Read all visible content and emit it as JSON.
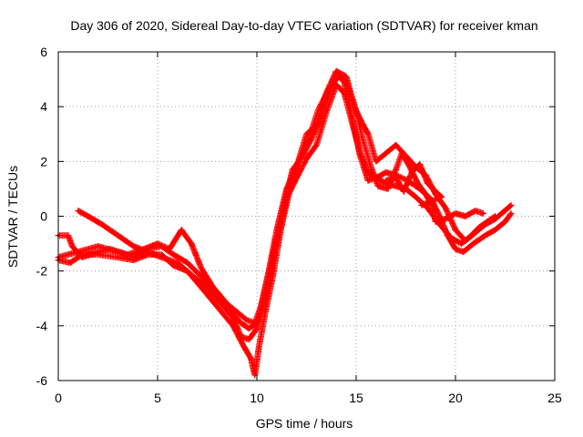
{
  "chart_data": {
    "type": "scatter",
    "title": "Day 306 of 2020, Sidereal Day-to-day VTEC variation (SDTVAR) for receiver kman",
    "xlabel": "GPS time / hours",
    "ylabel": "SDTVAR / TECUs",
    "xlim": [
      0,
      25
    ],
    "ylim": [
      -6,
      6
    ],
    "xticks": [
      0,
      5,
      10,
      15,
      20,
      25
    ],
    "yticks": [
      -6,
      -4,
      -2,
      0,
      2,
      4,
      6
    ],
    "xtick_labels": [
      "0",
      "5",
      "10",
      "15",
      "20",
      "25"
    ],
    "ytick_labels": [
      "-6",
      "-4",
      "-2",
      "0",
      "2",
      "4",
      "6"
    ],
    "grid": true,
    "marker": "+",
    "color": "#ff0000",
    "series": [
      {
        "name": "trace-1",
        "points": [
          [
            0.0,
            -1.5
          ],
          [
            1.0,
            -1.3
          ],
          [
            2.0,
            -1.1
          ],
          [
            3.0,
            -1.3
          ],
          [
            3.8,
            -1.5
          ],
          [
            4.5,
            -1.2
          ],
          [
            5.2,
            -1.1
          ],
          [
            5.8,
            -1.4
          ],
          [
            6.5,
            -1.7
          ],
          [
            7.2,
            -2.2
          ],
          [
            8.0,
            -2.8
          ],
          [
            8.7,
            -3.5
          ],
          [
            9.2,
            -3.9
          ],
          [
            9.6,
            -4.1
          ],
          [
            10.0,
            -3.9
          ],
          [
            10.3,
            -3.0
          ],
          [
            10.7,
            -1.8
          ],
          [
            11.0,
            -0.8
          ],
          [
            11.4,
            0.5
          ],
          [
            11.8,
            1.7
          ],
          [
            12.3,
            2.2
          ],
          [
            12.8,
            2.9
          ],
          [
            13.3,
            3.7
          ],
          [
            13.7,
            4.6
          ],
          [
            14.0,
            5.2
          ],
          [
            14.4,
            4.9
          ],
          [
            14.8,
            3.6
          ],
          [
            15.2,
            2.2
          ],
          [
            15.6,
            1.3
          ],
          [
            16.0,
            1.4
          ],
          [
            16.5,
            1.6
          ],
          [
            17.0,
            1.5
          ],
          [
            17.6,
            1.3
          ],
          [
            18.2,
            1.0
          ],
          [
            18.8,
            0.6
          ],
          [
            19.2,
            0.0
          ],
          [
            19.6,
            -0.7
          ],
          [
            20.0,
            -1.2
          ],
          [
            20.4,
            -1.3
          ],
          [
            20.9,
            -1.0
          ],
          [
            21.5,
            -0.7
          ],
          [
            22.0,
            -0.5
          ],
          [
            22.5,
            -0.2
          ],
          [
            22.8,
            0.1
          ]
        ]
      },
      {
        "name": "trace-2",
        "points": [
          [
            0.0,
            -1.6
          ],
          [
            0.6,
            -1.7
          ],
          [
            1.2,
            -1.4
          ],
          [
            2.0,
            -1.4
          ],
          [
            3.0,
            -1.5
          ],
          [
            3.8,
            -1.6
          ],
          [
            4.5,
            -1.4
          ],
          [
            5.2,
            -1.4
          ],
          [
            5.8,
            -1.8
          ],
          [
            6.5,
            -2.0
          ],
          [
            7.2,
            -2.6
          ],
          [
            8.0,
            -3.3
          ],
          [
            8.8,
            -4.0
          ],
          [
            9.3,
            -4.7
          ],
          [
            9.7,
            -5.2
          ],
          [
            9.9,
            -5.8
          ],
          [
            10.1,
            -4.8
          ],
          [
            10.4,
            -3.6
          ],
          [
            10.8,
            -2.2
          ],
          [
            11.2,
            -0.5
          ],
          [
            11.6,
            0.8
          ],
          [
            12.0,
            1.4
          ],
          [
            12.5,
            2.1
          ],
          [
            13.0,
            2.6
          ],
          [
            13.5,
            3.8
          ],
          [
            14.0,
            4.8
          ],
          [
            14.4,
            4.5
          ],
          [
            14.8,
            3.4
          ],
          [
            15.2,
            2.3
          ],
          [
            15.6,
            1.6
          ],
          [
            16.0,
            1.4
          ],
          [
            16.5,
            1.2
          ],
          [
            17.0,
            1.1
          ],
          [
            17.5,
            1.0
          ],
          [
            18.0,
            0.7
          ],
          [
            18.6,
            0.3
          ],
          [
            19.2,
            -0.3
          ],
          [
            19.8,
            -0.8
          ],
          [
            20.3,
            -1.0
          ],
          [
            20.8,
            -0.7
          ],
          [
            21.2,
            -0.4
          ],
          [
            21.6,
            -0.2
          ],
          [
            22.0,
            0.0
          ]
        ]
      },
      {
        "name": "trace-3",
        "points": [
          [
            0.0,
            -0.7
          ],
          [
            0.5,
            -0.7
          ],
          [
            0.7,
            -1.1
          ],
          [
            1.2,
            -1.5
          ],
          [
            2.0,
            -1.3
          ],
          [
            2.6,
            -1.2
          ],
          [
            3.5,
            -1.4
          ],
          [
            4.3,
            -1.2
          ],
          [
            5.0,
            -1.0
          ],
          [
            5.6,
            -1.2
          ],
          [
            6.2,
            -0.5
          ],
          [
            6.7,
            -1.0
          ],
          [
            7.2,
            -1.9
          ],
          [
            7.8,
            -2.6
          ],
          [
            8.5,
            -3.2
          ],
          [
            9.0,
            -3.5
          ],
          [
            9.5,
            -3.8
          ],
          [
            9.9,
            -3.9
          ],
          [
            10.2,
            -3.3
          ],
          [
            10.6,
            -2.0
          ],
          [
            11.0,
            -0.5
          ],
          [
            11.5,
            1.0
          ],
          [
            12.0,
            1.8
          ],
          [
            12.5,
            3.0
          ],
          [
            13.0,
            3.3
          ],
          [
            13.5,
            4.5
          ],
          [
            14.0,
            5.3
          ],
          [
            14.5,
            5.1
          ],
          [
            14.9,
            4.0
          ],
          [
            15.3,
            3.4
          ],
          [
            15.6,
            3.0
          ],
          [
            16.0,
            2.0
          ],
          [
            16.5,
            2.3
          ],
          [
            17.0,
            2.6
          ],
          [
            17.5,
            2.2
          ],
          [
            18.0,
            1.8
          ],
          [
            18.5,
            1.5
          ],
          [
            19.0,
            0.8
          ],
          [
            19.5,
            0.3
          ],
          [
            20.0,
            -0.5
          ],
          [
            20.5,
            -0.9
          ],
          [
            21.0,
            -0.6
          ],
          [
            21.5,
            -0.3
          ],
          [
            22.0,
            -0.1
          ],
          [
            22.8,
            0.4
          ]
        ]
      },
      {
        "name": "trace-4",
        "points": [
          [
            1.0,
            0.2
          ],
          [
            1.5,
            0.0
          ],
          [
            2.2,
            -0.3
          ],
          [
            3.0,
            -0.7
          ],
          [
            3.8,
            -1.1
          ],
          [
            4.5,
            -1.3
          ],
          [
            5.2,
            -1.5
          ],
          [
            6.0,
            -1.7
          ],
          [
            6.8,
            -2.2
          ],
          [
            7.5,
            -2.6
          ],
          [
            8.2,
            -3.2
          ],
          [
            8.8,
            -3.7
          ],
          [
            9.2,
            -4.4
          ],
          [
            9.6,
            -4.5
          ],
          [
            10.0,
            -4.1
          ],
          [
            10.4,
            -3.1
          ],
          [
            10.8,
            -1.6
          ],
          [
            11.2,
            -0.3
          ],
          [
            11.6,
            1.1
          ],
          [
            12.1,
            2.0
          ],
          [
            12.6,
            2.8
          ],
          [
            13.1,
            3.9
          ],
          [
            13.6,
            4.6
          ],
          [
            14.1,
            5.1
          ],
          [
            14.5,
            4.9
          ],
          [
            14.9,
            4.1
          ],
          [
            15.3,
            2.9
          ],
          [
            15.7,
            1.9
          ],
          [
            16.1,
            1.1
          ],
          [
            16.6,
            1.0
          ],
          [
            17.0,
            1.7
          ],
          [
            17.3,
            2.3
          ],
          [
            17.7,
            1.8
          ],
          [
            18.1,
            1.2
          ],
          [
            18.5,
            0.8
          ],
          [
            18.8,
            0.4
          ],
          [
            19.0,
            -0.2
          ],
          [
            19.5,
            -0.1
          ],
          [
            20.0,
            0.1
          ],
          [
            20.5,
            0.0
          ],
          [
            21.0,
            0.2
          ],
          [
            21.4,
            0.1
          ]
        ]
      },
      {
        "name": "trace-5",
        "points": [
          [
            16.5,
            1.3
          ],
          [
            17.0,
            1.4
          ],
          [
            17.4,
            0.9
          ],
          [
            17.8,
            1.6
          ],
          [
            18.2,
            1.9
          ],
          [
            18.6,
            1.2
          ],
          [
            19.0,
            0.9
          ],
          [
            19.3,
            0.7
          ],
          [
            18.3,
            0.4
          ]
        ]
      }
    ]
  }
}
